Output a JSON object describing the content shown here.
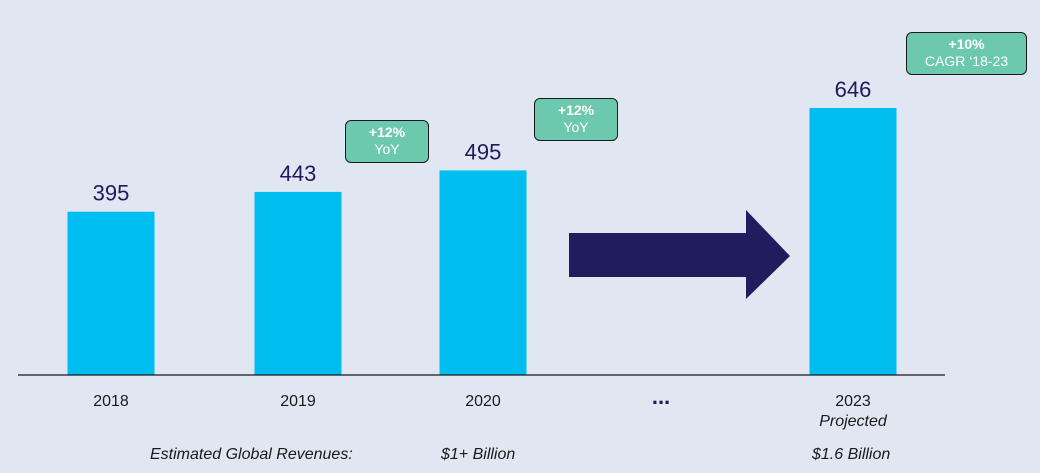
{
  "chart_data": {
    "type": "bar",
    "categories": [
      "2018",
      "2019",
      "2020",
      "2023"
    ],
    "values": [
      395,
      443,
      495,
      646
    ],
    "value_labels": [
      "395",
      "443",
      "495",
      "646"
    ],
    "sublabels": [
      "",
      "",
      "",
      "Projected"
    ],
    "ellipsis": "...",
    "ylim": [
      0,
      700
    ],
    "bar_color": "#00bef0",
    "arrow_color": "#201c5e",
    "grid": false,
    "annotations": [
      {
        "pct": "+12%",
        "text": "YoY"
      },
      {
        "pct": "+12%",
        "text": "YoY"
      },
      {
        "pct": "+10%",
        "text": "CAGR ‘18-23"
      }
    ],
    "revenue_row": {
      "label": "Estimated Global Revenues:",
      "values": [
        "$1+ Billion",
        "$1.6 Billion"
      ]
    }
  }
}
